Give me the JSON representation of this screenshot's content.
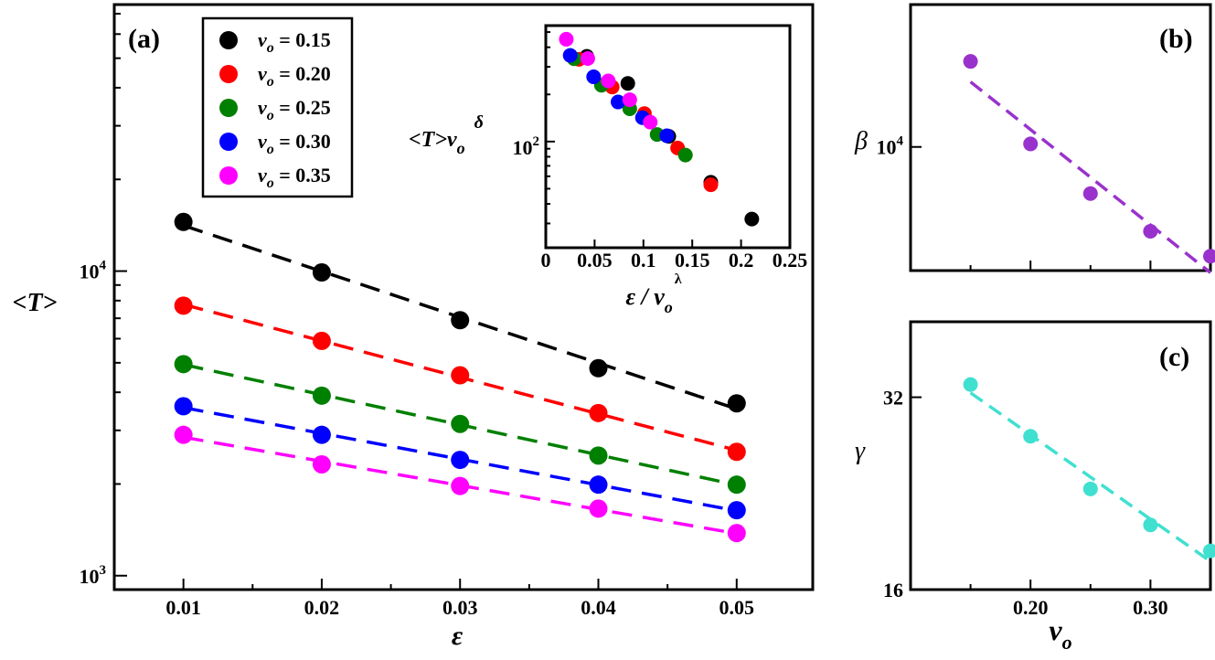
{
  "chart_data": [
    {
      "id": "a",
      "panel_label": "(a)",
      "type": "scatter",
      "scale": "log-y",
      "xlabel": "ε",
      "ylabel": "<T>",
      "x_ticks": [
        "0.01",
        "0.02",
        "0.03",
        "0.04",
        "0.05"
      ],
      "y_ticks": [
        {
          "base": "10",
          "exp": "4",
          "value": 10000
        },
        {
          "base": "10",
          "exp": "3",
          "value": 1000
        }
      ],
      "xlim": [
        0.005,
        0.0555
      ],
      "ylim": [
        900,
        75000
      ],
      "x": [
        0.01,
        0.02,
        0.03,
        0.04,
        0.05
      ],
      "legend_location": "upper-left",
      "series": [
        {
          "name": "v",
          "sub": "o",
          "eq": " = 0.15",
          "color": "#000000",
          "values": [
            14500,
            9900,
            6900,
            4800,
            3680
          ]
        },
        {
          "name": "v",
          "sub": "o",
          "eq": " = 0.20",
          "color": "#ff0000",
          "values": [
            7700,
            5900,
            4550,
            3420,
            2550
          ]
        },
        {
          "name": "v",
          "sub": "o",
          "eq": " = 0.25",
          "color": "#008000",
          "values": [
            4950,
            3900,
            3150,
            2480,
            1990
          ]
        },
        {
          "name": "v",
          "sub": "o",
          "eq": " = 0.30",
          "color": "#0000ff",
          "values": [
            3600,
            2900,
            2400,
            1990,
            1640
          ]
        },
        {
          "name": "v",
          "sub": "o",
          "eq": " = 0.35",
          "color": "#ff00ff",
          "values": [
            2900,
            2320,
            1970,
            1660,
            1380
          ]
        }
      ]
    },
    {
      "id": "inset",
      "type": "scatter",
      "scale": "log-y",
      "xlabel": "ε / v",
      "xlabel_sub": "o",
      "xlabel_sup": "λ",
      "ylabel": "<T>v",
      "ylabel_sub": "o",
      "ylabel_sup": "δ",
      "x_ticks": [
        "0",
        "0.05",
        "0.1",
        "0.15",
        "0.2",
        "0.25"
      ],
      "y_ticks": [
        {
          "base": "10",
          "exp": "2",
          "value": 100
        }
      ],
      "xlim": [
        0,
        0.25
      ],
      "ylim": [
        21,
        550
      ],
      "series": [
        {
          "name": "v0=0.15",
          "color": "#000000",
          "x": [
            0.042,
            0.084,
            0.126,
            0.169,
            0.211
          ],
          "y": [
            350,
            235,
            108,
            55,
            32
          ]
        },
        {
          "name": "v0=0.20",
          "color": "#ff0000",
          "x": [
            0.034,
            0.068,
            0.101,
            0.135,
            0.169
          ],
          "y": [
            335,
            223,
            151,
            91,
            53
          ]
        },
        {
          "name": "v0=0.25",
          "color": "#008000",
          "x": [
            0.029,
            0.057,
            0.086,
            0.114,
            0.143
          ],
          "y": [
            338,
            229,
            162,
            111,
            82
          ]
        },
        {
          "name": "v0=0.30",
          "color": "#0000ff",
          "x": [
            0.025,
            0.049,
            0.074,
            0.099,
            0.124
          ],
          "y": [
            355,
            259,
            179,
            142,
            109
          ]
        },
        {
          "name": "v0=0.35",
          "color": "#ff00ff",
          "x": [
            0.021,
            0.043,
            0.064,
            0.086,
            0.107
          ],
          "y": [
            450,
            339,
            244,
            185,
            133
          ]
        }
      ]
    },
    {
      "id": "b",
      "panel_label": "(b)",
      "type": "scatter",
      "scale": "log-y",
      "xlabel": "",
      "ylabel": "β",
      "y_ticks": [
        {
          "base": "10",
          "exp": "4",
          "value": 10000
        }
      ],
      "xlim": [
        0.1,
        0.35
      ],
      "ylim": [
        3000,
        40000
      ],
      "color": "#9932cc",
      "x": [
        0.15,
        0.2,
        0.25,
        0.3,
        0.35
      ],
      "values": [
        23000,
        10300,
        6350,
        4400,
        3450
      ]
    },
    {
      "id": "c",
      "panel_label": "(c)",
      "type": "scatter",
      "scale": "log-y",
      "xlabel": "v",
      "xlabel_sub": "o",
      "ylabel": "γ",
      "x_ticks": [
        "0.20",
        "0.30"
      ],
      "y_ticks": [
        {
          "label": "32",
          "value": 32
        },
        {
          "label": "16",
          "value": 16
        }
      ],
      "xlim": [
        0.1,
        0.35
      ],
      "ylim": [
        16,
        42
      ],
      "color": "#40e0d0",
      "x": [
        0.15,
        0.2,
        0.25,
        0.3,
        0.35
      ],
      "values": [
        33.5,
        27.8,
        23.0,
        20.2,
        18.4
      ]
    }
  ]
}
